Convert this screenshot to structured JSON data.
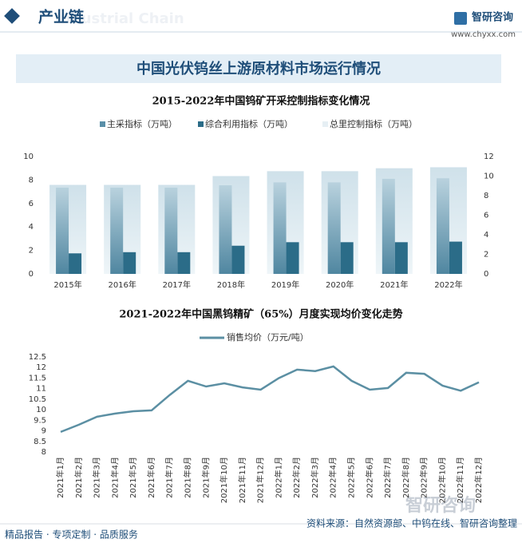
{
  "header": {
    "title": "产业链",
    "subtitle": "Industrial Chain",
    "logo": "智研咨询",
    "url": "www.chyxx.com"
  },
  "banner": "中国光伏钨丝上游原材料市场运行情况",
  "chart_data": [
    {
      "type": "bar",
      "title": "2015-2022年中国钨矿开采控制指标变化情况",
      "categories": [
        "2015年",
        "2016年",
        "2017年",
        "2018年",
        "2019年",
        "2020年",
        "2021年",
        "2022年"
      ],
      "series": [
        {
          "name": "主采指标（万吨）",
          "color": "#5a8fa8",
          "values": [
            7.35,
            7.35,
            7.35,
            7.55,
            7.8,
            7.8,
            8.1,
            8.15
          ]
        },
        {
          "name": "综合利用指标（万吨）",
          "color": "#2b6c88",
          "values": [
            1.75,
            1.85,
            1.85,
            2.4,
            2.7,
            2.7,
            2.7,
            2.75
          ]
        },
        {
          "name": "总里控制指标（万吨）",
          "color": "#d6e6ee",
          "axis": "y2",
          "values": [
            9.1,
            9.1,
            9.1,
            10,
            10.5,
            10.5,
            10.8,
            10.9
          ]
        }
      ],
      "ylim": [
        0,
        10
      ],
      "yticks": [
        0,
        2,
        4,
        6,
        8,
        10
      ],
      "y2lim": [
        0,
        12
      ],
      "y2ticks": [
        0,
        2,
        4,
        6,
        8,
        10,
        12
      ]
    },
    {
      "type": "line",
      "title": "2021-2022年中国黑钨精矿（65%）月度实现均价变化走势",
      "categories": [
        "2021年1月",
        "2021年2月",
        "2021年3月",
        "2021年4月",
        "2021年5月",
        "2021年6月",
        "2021年7月",
        "2021年8月",
        "2021年9月",
        "2021年10月",
        "2021年11月",
        "2021年12月",
        "2022年1月",
        "2022年2月",
        "2022年3月",
        "2022年4月",
        "2022年5月",
        "2022年6月",
        "2022年7月",
        "2022年8月",
        "2022年9月",
        "2022年10月",
        "2022年11月",
        "2022年12月"
      ],
      "series": [
        {
          "name": "销售均价（万元/吨）",
          "color": "#5b8fa3",
          "values": [
            8.95,
            9.29,
            9.67,
            9.82,
            9.93,
            9.97,
            10.7,
            11.37,
            11.1,
            11.25,
            11.06,
            10.95,
            11.5,
            11.9,
            11.83,
            12.05,
            11.37,
            10.95,
            11.03,
            11.75,
            11.7,
            11.14,
            10.9,
            11.3
          ]
        }
      ],
      "ylim": [
        8,
        12.5
      ],
      "yticks": [
        8,
        8.5,
        9,
        9.5,
        10,
        10.5,
        11,
        11.5,
        12,
        12.5
      ]
    }
  ],
  "watermark": "智研咨询",
  "footer": {
    "left": "精品报告 · 专项定制 · 品质服务",
    "right": "资料来源：自然资源部、中钨在线、智研咨询整理"
  }
}
